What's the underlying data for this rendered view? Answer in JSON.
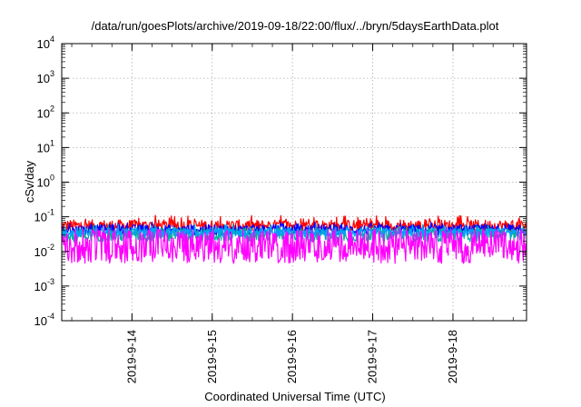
{
  "chart_data": {
    "type": "line",
    "title": "/data/run/goesPlots/archive/2019-09-18/22:00/flux/../bryn/5daysEarthData.plot",
    "xlabel": "Coordinated Universal Time (UTC)",
    "ylabel": "cSv/day",
    "x_range": [
      "2019-09-13 03:00",
      "2019-09-18 22:00"
    ],
    "ylim": [
      0.0001,
      10000
    ],
    "y_scale": "log",
    "y_tick_labels": [
      {
        "base": "10",
        "exp": "-4",
        "value": 0.0001
      },
      {
        "base": "10",
        "exp": "-3",
        "value": 0.001
      },
      {
        "base": "10",
        "exp": "-2",
        "value": 0.01
      },
      {
        "base": "10",
        "exp": "-1",
        "value": 0.1
      },
      {
        "base": "10",
        "exp": "0",
        "value": 1
      },
      {
        "base": "10",
        "exp": "1",
        "value": 10
      },
      {
        "base": "10",
        "exp": "2",
        "value": 100
      },
      {
        "base": "10",
        "exp": "3",
        "value": 1000
      },
      {
        "base": "10",
        "exp": "4",
        "value": 10000
      }
    ],
    "x_ticks": [
      {
        "label": "2019-9-14",
        "value": "2019-09-14 00:00"
      },
      {
        "label": "2019-9-15",
        "value": "2019-09-15 00:00"
      },
      {
        "label": "2019-9-16",
        "value": "2019-09-16 00:00"
      },
      {
        "label": "2019-9-17",
        "value": "2019-09-17 00:00"
      },
      {
        "label": "2019-9-18",
        "value": "2019-09-18 00:00"
      }
    ],
    "grid": true,
    "series": [
      {
        "color": "#ff0000",
        "base": 0.055,
        "spread": 0.35,
        "spike_max": 0.11
      },
      {
        "color": "#0000ff",
        "base": 0.042,
        "spread": 0.3,
        "spike_max": 0.07
      },
      {
        "color": "#00b0a0",
        "base": 0.03,
        "spread": 0.4,
        "spike_max": 0.06
      },
      {
        "color": "#00a0ff",
        "base": 0.035,
        "spread": 0.25,
        "spike_max": 0.06
      },
      {
        "color": "#ff00ff",
        "base": 0.009,
        "spread": 0.6,
        "spike_max": 0.04
      }
    ]
  }
}
